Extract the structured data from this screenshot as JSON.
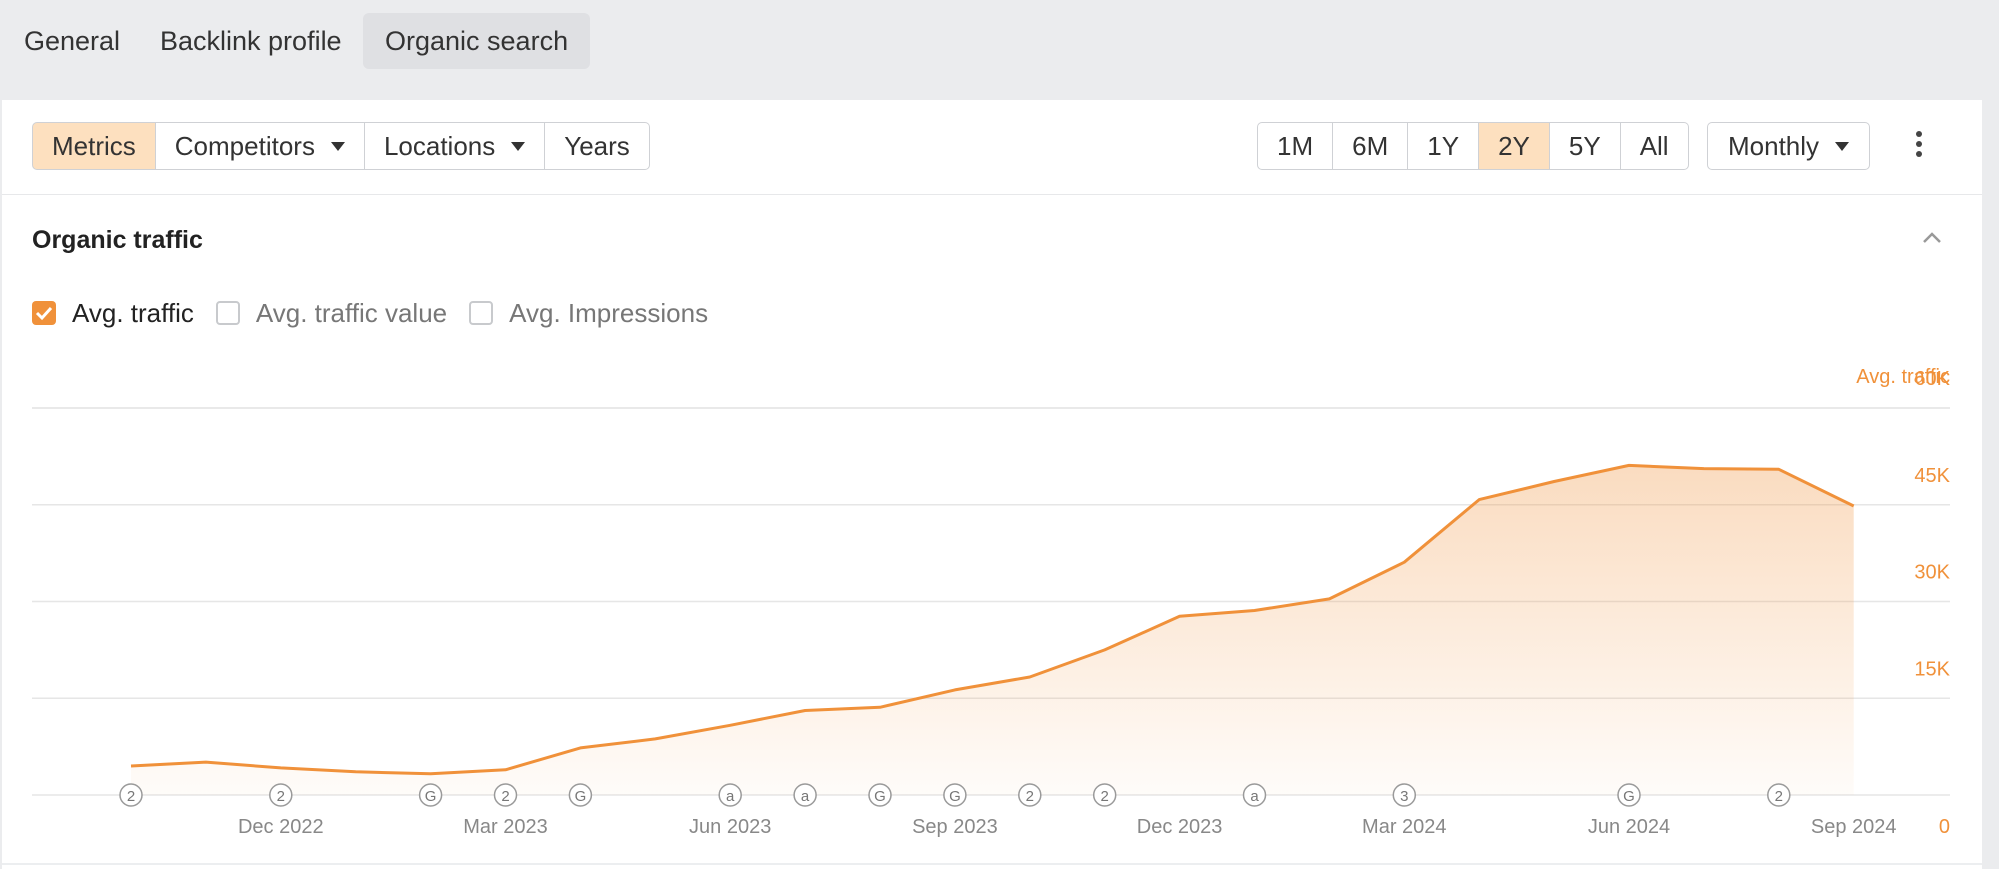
{
  "tabs": [
    {
      "label": "General",
      "active": false
    },
    {
      "label": "Backlink profile",
      "active": false
    },
    {
      "label": "Organic search",
      "active": true
    }
  ],
  "toolbar": {
    "view_buttons": [
      {
        "label": "Metrics",
        "active": true,
        "dropdown": false
      },
      {
        "label": "Competitors",
        "active": false,
        "dropdown": true
      },
      {
        "label": "Locations",
        "active": false,
        "dropdown": true
      },
      {
        "label": "Years",
        "active": false,
        "dropdown": false
      }
    ],
    "ranges": [
      {
        "label": "1M",
        "active": false
      },
      {
        "label": "6M",
        "active": false
      },
      {
        "label": "1Y",
        "active": false
      },
      {
        "label": "2Y",
        "active": true
      },
      {
        "label": "5Y",
        "active": false
      },
      {
        "label": "All",
        "active": false
      }
    ],
    "interval_label": "Monthly",
    "more_icon": "more-vertical-icon"
  },
  "section": {
    "title": "Organic traffic",
    "collapse_icon": "chevron-up-icon"
  },
  "metrics": [
    {
      "label": "Avg. traffic",
      "checked": true
    },
    {
      "label": "Avg. traffic value",
      "checked": false
    },
    {
      "label": "Avg. Impressions",
      "checked": false
    }
  ],
  "colors": {
    "accent": "#f0913a",
    "axis_text": "#888888",
    "grid": "#e6e6e6"
  },
  "chart_data": {
    "type": "area",
    "ylabel": "Avg. traffic",
    "y_tick_labels": [
      "60K",
      "45K",
      "30K",
      "15K",
      "0"
    ],
    "ylim": [
      0,
      60000
    ],
    "y_ticks": [
      0,
      15000,
      30000,
      45000,
      60000
    ],
    "x_tick_labels": [
      "Dec 2022",
      "Mar 2023",
      "Jun 2023",
      "Sep 2023",
      "Dec 2023",
      "Mar 2024",
      "Jun 2024",
      "Sep 2024"
    ],
    "grid": true,
    "legend": "none",
    "series": [
      {
        "name": "Avg. traffic",
        "x": [
          "2022-10",
          "2022-11",
          "2022-12",
          "2023-01",
          "2023-02",
          "2023-03",
          "2023-04",
          "2023-05",
          "2023-06",
          "2023-07",
          "2023-08",
          "2023-09",
          "2023-10",
          "2023-11",
          "2023-12",
          "2024-01",
          "2024-02",
          "2024-03",
          "2024-04",
          "2024-05",
          "2024-06",
          "2024-07",
          "2024-08",
          "2024-09"
        ],
        "values": [
          4500,
          5100,
          4200,
          3600,
          3300,
          3900,
          7300,
          8700,
          10800,
          13100,
          13600,
          16300,
          18300,
          22500,
          27700,
          28600,
          30400,
          36100,
          45800,
          48600,
          51100,
          50600,
          50500,
          44800
        ]
      }
    ],
    "annotations": [
      {
        "date": "2022-10",
        "label": "2"
      },
      {
        "date": "2022-12",
        "label": "2"
      },
      {
        "date": "2023-02",
        "label": "G"
      },
      {
        "date": "2023-03",
        "label": "2"
      },
      {
        "date": "2023-04",
        "label": "G"
      },
      {
        "date": "2023-06",
        "label": "a"
      },
      {
        "date": "2023-07",
        "label": "a"
      },
      {
        "date": "2023-08",
        "label": "G"
      },
      {
        "date": "2023-09",
        "label": "G"
      },
      {
        "date": "2023-10",
        "label": "2"
      },
      {
        "date": "2023-11",
        "label": "2"
      },
      {
        "date": "2024-01",
        "label": "a"
      },
      {
        "date": "2024-03",
        "label": "3"
      },
      {
        "date": "2024-06",
        "label": "G"
      },
      {
        "date": "2024-08",
        "label": "2"
      }
    ]
  }
}
